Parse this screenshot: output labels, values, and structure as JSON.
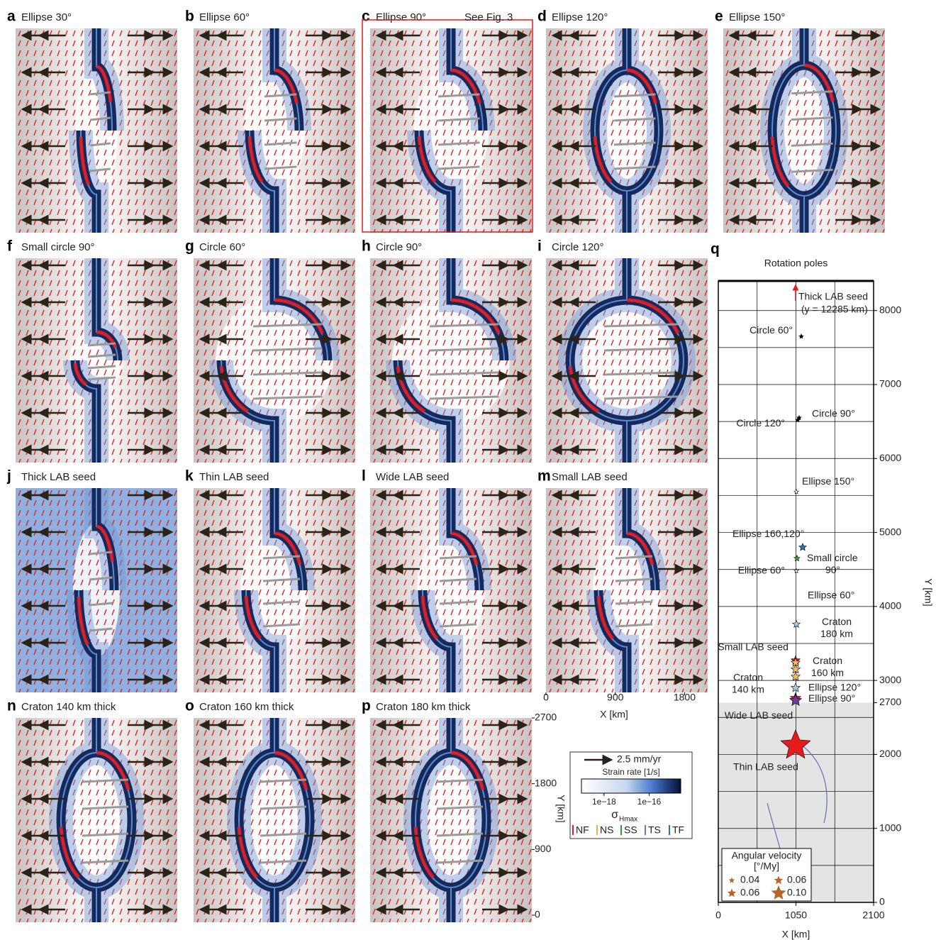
{
  "panels": [
    {
      "letter": "a",
      "title": "Ellipse 30°",
      "color": "#a7cbe3"
    },
    {
      "letter": "b",
      "title": "Ellipse 60°",
      "color": "#a7cbe3"
    },
    {
      "letter": "c",
      "title": "Ellipse 90°",
      "color": "#6a3d9a"
    },
    {
      "letter": "d",
      "title": "Ellipse 120°",
      "color": "#a7cbe3"
    },
    {
      "letter": "e",
      "title": "Ellipse 150°",
      "color": "#a7cbe3"
    },
    {
      "letter": "f",
      "title": "Small circle 90°",
      "color": "#2ca02c"
    },
    {
      "letter": "g",
      "title": "Circle 60°",
      "color": "#a6d98a"
    },
    {
      "letter": "h",
      "title": "Circle 90°",
      "color": "#a6d98a"
    },
    {
      "letter": "i",
      "title": "Circle 120°",
      "color": "#a6d98a"
    },
    {
      "letter": "j",
      "title": "Thick LAB seed",
      "color": "#e41a1c"
    },
    {
      "letter": "k",
      "title": "Thin LAB seed",
      "color": "#e41a1c"
    },
    {
      "letter": "l",
      "title": "Wide LAB seed",
      "color": "#e41a1c"
    },
    {
      "letter": "m",
      "title": "Small LAB seed",
      "color": "#e41a1c"
    },
    {
      "letter": "n",
      "title": "Craton 140 km thick",
      "color": "#f5b96b"
    },
    {
      "letter": "o",
      "title": "Craton 160 km thick",
      "color": "#f5b96b"
    },
    {
      "letter": "p",
      "title": "Craton 180 km thick",
      "color": "#f5b96b"
    }
  ],
  "panel_c_note": "See Fig. 3",
  "map_axes": {
    "x_label": "X [km]",
    "xlim": [
      0,
      2100
    ],
    "xticks": [
      0,
      900,
      1800
    ],
    "y_label": "Y [km]",
    "ylim": [
      0,
      2700
    ],
    "yticks": [
      0,
      900,
      1800,
      2700
    ]
  },
  "legend": {
    "velocity": "2.5 mm/yr",
    "strain_title": "Strain rate [1/s]",
    "strain_lim": [
      1e-19,
      2.5e-15
    ],
    "log_scale": true,
    "strain_ticks": [
      {
        "value": 1e-18,
        "label": "1e−18"
      },
      {
        "value": 1e-16,
        "label": "1e−16"
      }
    ],
    "sigma": "σ",
    "sigma_sub": "Hmax",
    "regimes": [
      {
        "name": "NF",
        "color": "#e41a1c"
      },
      {
        "name": "NS",
        "color": "#f5b041"
      },
      {
        "name": "SS",
        "color": "#2ca02c"
      },
      {
        "name": "TS",
        "color": "#9467bd"
      },
      {
        "name": "TF",
        "color": "#1f77b4"
      }
    ]
  },
  "chart_data": {
    "type": "scatter",
    "letter": "q",
    "title": "Rotation poles",
    "x_label": "X [km]",
    "y_label": "Y [km]",
    "xlim": [
      0,
      2100
    ],
    "xticks": [
      0,
      1050,
      2100
    ],
    "ylim": [
      0,
      8400
    ],
    "yticks": [
      0,
      1000,
      2000,
      2700,
      3000,
      4000,
      5000,
      6000,
      7000,
      8000
    ],
    "grid": true,
    "xgrid": [
      525,
      1050,
      1575
    ],
    "ygrid": [
      500,
      1000,
      1500,
      2000,
      2500,
      3000,
      3500,
      4000,
      4500,
      5000,
      5500,
      6000,
      6500,
      7000,
      7500,
      8000
    ],
    "shade_below": 2700,
    "series": [
      {
        "label": [
          "Circle 60°"
        ],
        "color": "#a6d98a",
        "fill": "#000000",
        "x": 1122,
        "y": 7650,
        "size": 0.03
      },
      {
        "label": [
          "Circle 90°"
        ],
        "color": "#a6d98a",
        "fill": "#000000",
        "x": 1093,
        "y": 6550,
        "size": 0.03
      },
      {
        "label": [
          "Circle 120°"
        ],
        "color": "#a6d98a",
        "fill": "#000000",
        "x": 1074,
        "y": 6520,
        "size": 0.03
      },
      {
        "label": [
          "Ellipse 150°"
        ],
        "color": "#a7cbe3",
        "fill": "#ffffff",
        "x": 1055,
        "y": 5550,
        "size": 0.03
      },
      {
        "label": [
          "Ellipse 160,120°"
        ],
        "color": "#2878b5",
        "fill": "#2878b5",
        "x": 1141,
        "y": 4800,
        "size": 0.05
      },
      {
        "label": [
          "Small circle",
          "90°"
        ],
        "color": "#3aa935",
        "fill": "#3aa935",
        "x": 1064,
        "y": 4650,
        "size": 0.04
      },
      {
        "label": [
          "Ellipse 60°"
        ],
        "color": "#a7cbe3",
        "fill": "#ffffff",
        "x": 1055,
        "y": 4480,
        "size": 0.03
      },
      {
        "label": [
          "Ellipse 60°"
        ],
        "color": "#a7cbe3",
        "fill": "#a7cbe3",
        "x": 1055,
        "y": 3760,
        "size": 0.05
      },
      {
        "label": [
          "Small LAB seed"
        ],
        "color": "#e41a1c",
        "fill": "#e41a1c",
        "x": 1045,
        "y": 3270,
        "size": 0.06
      },
      {
        "label": [
          "Craton",
          "180 km"
        ],
        "color": "#f5b96b",
        "fill": "#f5b96b",
        "x": 1045,
        "y": 3240,
        "size": 0.06
      },
      {
        "label": [
          "Craton",
          "160 km"
        ],
        "color": "#f5b96b",
        "fill": "#f5b96b",
        "x": 1045,
        "y": 3150,
        "size": 0.06
      },
      {
        "label": [
          "Craton",
          "140 km"
        ],
        "color": "#f5b96b",
        "fill": "#f5b96b",
        "x": 1045,
        "y": 3050,
        "size": 0.06
      },
      {
        "label": [
          "Ellipse 120°"
        ],
        "color": "#a7cbe3",
        "fill": "#a7cbe3",
        "x": 1045,
        "y": 2900,
        "size": 0.06
      },
      {
        "label": [
          "Wide LAB seed"
        ],
        "color": "#e41a1c",
        "fill": "#e41a1c",
        "x": 1045,
        "y": 2760,
        "size": 0.07
      },
      {
        "label": [
          "Ellipse 90°"
        ],
        "color": "#6a3d9a",
        "fill": "#6a3d9a",
        "x": 1045,
        "y": 2730,
        "size": 0.08
      },
      {
        "label": [
          "Thin LAB seed"
        ],
        "color": "#e41a1c",
        "fill": "#e41a1c",
        "x": 1045,
        "y": 2120,
        "size": 0.2
      }
    ],
    "offscale": {
      "label": [
        "Thick LAB seed",
        "(y = 12285 km)"
      ],
      "color": "#e41a1c",
      "x": 1045,
      "y": 12285
    },
    "size_legend": {
      "title": "Angular velocity",
      "unit": "[°/My]",
      "sizes": [
        0.04,
        0.06,
        0.06,
        {
          "value": 0.1,
          "label": "0.10"
        }
      ],
      "color": "#b5652b"
    }
  }
}
